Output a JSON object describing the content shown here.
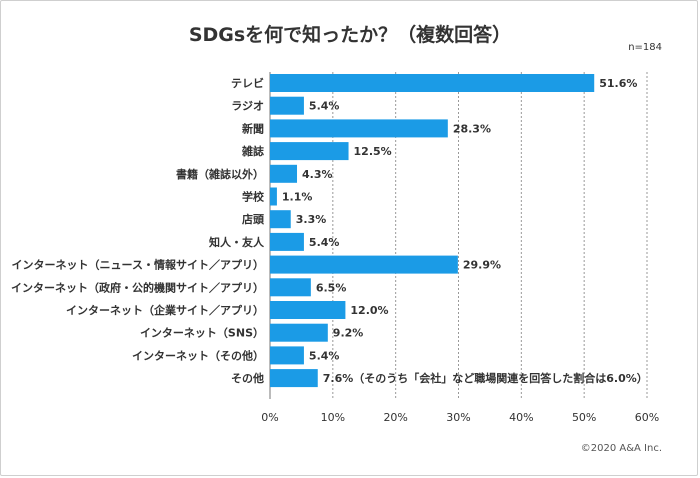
{
  "title": "SDGsを何で知ったか？（複数回答）",
  "note": "n=184",
  "credit": "©2020 A&A Inc.",
  "colors": {
    "bar": "#1b9be6",
    "grid": "#999999"
  },
  "chart_data": {
    "type": "bar",
    "orientation": "horizontal",
    "title": "SDGsを何で知ったか？（複数回答）",
    "categories": [
      "テレビ",
      "ラジオ",
      "新聞",
      "雑誌",
      "書籍（雑誌以外）",
      "学校",
      "店頭",
      "知人・友人",
      "インターネット（ニュース・情報サイト／アプリ）",
      "インターネット（政府・公的機関サイト／アプリ）",
      "インターネット（企業サイト／アプリ）",
      "インターネット（SNS）",
      "インターネット（その他）",
      "その他"
    ],
    "values": [
      51.6,
      5.4,
      28.3,
      12.5,
      4.3,
      1.1,
      3.3,
      5.4,
      29.9,
      6.5,
      12.0,
      9.2,
      5.4,
      7.6
    ],
    "value_labels": [
      "51.6%",
      "5.4%",
      "28.3%",
      "12.5%",
      "4.3%",
      "1.1%",
      "3.3%",
      "5.4%",
      "29.9%",
      "6.5%",
      "12.0%",
      "9.2%",
      "5.4%",
      "7.6%（そのうち「会社」など職場関連を回答した割合は6.0%）"
    ],
    "xlim": [
      0,
      60
    ],
    "xticks": [
      "0%",
      "10%",
      "20%",
      "30%",
      "40%",
      "50%",
      "60%"
    ],
    "grid": true
  }
}
